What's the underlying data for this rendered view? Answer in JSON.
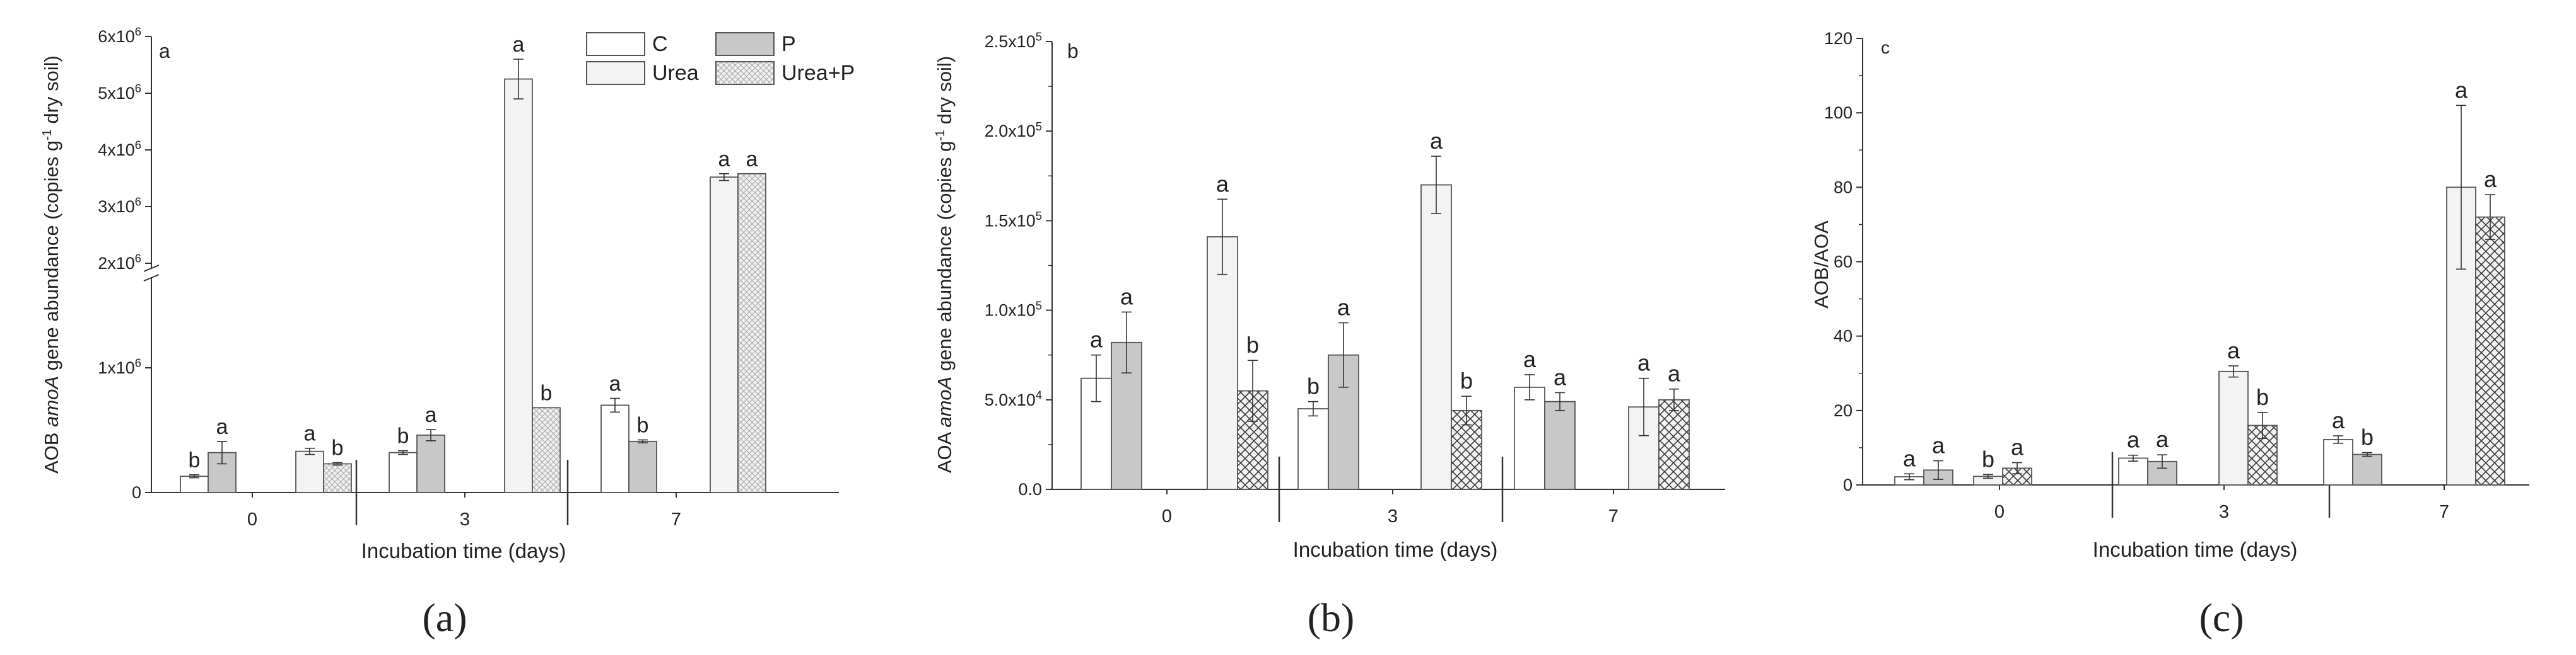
{
  "chart_data": [
    {
      "type": "bar",
      "panel_letter": "a",
      "caption": "(a)",
      "xlabel": "Incubation time (days)",
      "ylabel_parts": [
        "AOB ",
        "amoA",
        " gene abundance (copies g",
        "-1",
        " dry soil)"
      ],
      "axis_break": true,
      "ylim_lower": [
        0,
        1500000
      ],
      "ylim_upper": [
        2000000,
        6000000
      ],
      "yticks": [
        {
          "value": 0,
          "label": "0"
        },
        {
          "value": 1000000,
          "label": "1x10",
          "exp": "6"
        },
        {
          "value": 2000000,
          "label": "2x10",
          "exp": "6"
        },
        {
          "value": 3000000,
          "label": "3x10",
          "exp": "6"
        },
        {
          "value": 4000000,
          "label": "4x10",
          "exp": "6"
        },
        {
          "value": 5000000,
          "label": "5x10",
          "exp": "6"
        },
        {
          "value": 6000000,
          "label": "6x10",
          "exp": "6"
        }
      ],
      "categories": [
        "0",
        "3",
        "7"
      ],
      "legend": [
        "C",
        "P",
        "Urea",
        "Urea+P"
      ],
      "legend_position": "top-right",
      "groups": [
        {
          "pos": 1,
          "bars": [
            {
              "series": "C",
              "value": 130000,
              "err": 12000,
              "letter": "b"
            },
            {
              "series": "P",
              "value": 320000,
              "err": 90000,
              "letter": "a"
            }
          ]
        },
        {
          "pos": 2,
          "bars": [
            {
              "series": "Urea",
              "value": 330000,
              "err": 25000,
              "letter": "a"
            },
            {
              "series": "Urea+P",
              "value": 230000,
              "err": 10000,
              "letter": "b"
            }
          ]
        },
        {
          "pos": 3,
          "bars": [
            {
              "series": "C",
              "value": 320000,
              "err": 15000,
              "letter": "b"
            },
            {
              "series": "P",
              "value": 460000,
              "err": 45000,
              "letter": "a"
            }
          ]
        },
        {
          "pos": 4,
          "bars": [
            {
              "series": "Urea",
              "value": 5250000,
              "err": 350000,
              "letter": "a"
            },
            {
              "series": "Urea+P",
              "value": 680000,
              "err": 0,
              "letter": "b"
            }
          ]
        },
        {
          "pos": 5,
          "bars": [
            {
              "series": "C",
              "value": 700000,
              "err": 55000,
              "letter": "a"
            },
            {
              "series": "P",
              "value": 410000,
              "err": 12000,
              "letter": "b"
            }
          ]
        },
        {
          "pos": 6,
          "bars": [
            {
              "series": "Urea",
              "value": 3520000,
              "err": 60000,
              "letter": "a"
            },
            {
              "series": "Urea+P",
              "value": 3580000,
              "err": 0,
              "letter": "a"
            }
          ]
        }
      ]
    },
    {
      "type": "bar",
      "panel_letter": "b",
      "caption": "(b)",
      "xlabel": "Incubation time (days)",
      "ylabel_parts": [
        "AOA ",
        "amoA",
        " gene abundance (copies g",
        "-1",
        " dry soil)"
      ],
      "ylim": [
        0,
        250000
      ],
      "yticks": [
        {
          "value": 0,
          "label": "0.0"
        },
        {
          "value": 50000,
          "label": "5.0x10",
          "exp": "4"
        },
        {
          "value": 100000,
          "label": "1.0x10",
          "exp": "5"
        },
        {
          "value": 150000,
          "label": "1.5x10",
          "exp": "5"
        },
        {
          "value": 200000,
          "label": "2.0x10",
          "exp": "5"
        },
        {
          "value": 250000,
          "label": "2.5x10",
          "exp": "5"
        }
      ],
      "categories": [
        "0",
        "3",
        "7"
      ],
      "groups": [
        {
          "pos": 1,
          "bars": [
            {
              "series": "C",
              "value": 62000,
              "err": 13000,
              "letter": "a"
            },
            {
              "series": "P",
              "value": 82000,
              "err": 17000,
              "letter": "a"
            }
          ]
        },
        {
          "pos": 2,
          "bars": [
            {
              "series": "Urea",
              "value": 141000,
              "err": 21000,
              "letter": "a"
            },
            {
              "series": "Urea+P",
              "value": 55000,
              "err": 17000,
              "letter": "b"
            }
          ]
        },
        {
          "pos": 3,
          "bars": [
            {
              "series": "C",
              "value": 45000,
              "err": 4000,
              "letter": "b"
            },
            {
              "series": "P",
              "value": 75000,
              "err": 18000,
              "letter": "a"
            }
          ]
        },
        {
          "pos": 4,
          "bars": [
            {
              "series": "Urea",
              "value": 170000,
              "err": 16000,
              "letter": "a"
            },
            {
              "series": "Urea+P",
              "value": 44000,
              "err": 8000,
              "letter": "b"
            }
          ]
        },
        {
          "pos": 5,
          "bars": [
            {
              "series": "C",
              "value": 57000,
              "err": 7000,
              "letter": "a"
            },
            {
              "series": "P",
              "value": 49000,
              "err": 5000,
              "letter": "a"
            }
          ]
        },
        {
          "pos": 6,
          "bars": [
            {
              "series": "Urea",
              "value": 46000,
              "err": 16000,
              "letter": "a"
            },
            {
              "series": "Urea+P",
              "value": 50000,
              "err": 6000,
              "letter": "a"
            }
          ]
        }
      ]
    },
    {
      "type": "bar",
      "panel_letter": "c",
      "caption": "(c)",
      "xlabel": "Incubation time (days)",
      "ylabel_parts": [
        "AOB/AOA"
      ],
      "ylim": [
        0,
        120
      ],
      "yticks": [
        {
          "value": 0,
          "label": "0"
        },
        {
          "value": 20,
          "label": "20"
        },
        {
          "value": 40,
          "label": "40"
        },
        {
          "value": 60,
          "label": "60"
        },
        {
          "value": 80,
          "label": "80"
        },
        {
          "value": 100,
          "label": "100"
        },
        {
          "value": 120,
          "label": "120"
        }
      ],
      "categories": [
        "0",
        "3",
        "7"
      ],
      "groups": [
        {
          "pos": 1,
          "bars": [
            {
              "series": "C",
              "value": 2.2,
              "err": 0.8,
              "letter": "a"
            },
            {
              "series": "P",
              "value": 4.0,
              "err": 2.5,
              "letter": "a"
            }
          ]
        },
        {
          "pos": 2,
          "bars": [
            {
              "series": "Urea",
              "value": 2.3,
              "err": 0.5,
              "letter": "b"
            },
            {
              "series": "Urea+P",
              "value": 4.5,
              "err": 1.5,
              "letter": "a"
            }
          ]
        },
        {
          "pos": 3,
          "bars": [
            {
              "series": "C",
              "value": 7.2,
              "err": 0.8,
              "letter": "a"
            },
            {
              "series": "P",
              "value": 6.3,
              "err": 1.8,
              "letter": "a"
            }
          ]
        },
        {
          "pos": 4,
          "bars": [
            {
              "series": "Urea",
              "value": 30.5,
              "err": 1.5,
              "letter": "a"
            },
            {
              "series": "Urea+P",
              "value": 16.0,
              "err": 3.5,
              "letter": "b"
            }
          ]
        },
        {
          "pos": 5,
          "bars": [
            {
              "series": "C",
              "value": 12.2,
              "err": 1.0,
              "letter": "a"
            },
            {
              "series": "P",
              "value": 8.2,
              "err": 0.5,
              "letter": "b"
            }
          ]
        },
        {
          "pos": 6,
          "bars": [
            {
              "series": "Urea",
              "value": 80.0,
              "err": 22.0,
              "letter": "a"
            },
            {
              "series": "Urea+P",
              "value": 72.0,
              "err": 6.0,
              "letter": "a"
            }
          ]
        }
      ]
    }
  ],
  "colors": {
    "C": "#ffffff",
    "P": "#c8c8c8",
    "Urea": "#f3f3f3",
    "UreaP_fill": "#eeeeee",
    "UreaP_hatch": "#9a9a9a",
    "UreaP_hatch_c": "#3a3a3a",
    "outline": "#555555",
    "text": "#222222"
  }
}
